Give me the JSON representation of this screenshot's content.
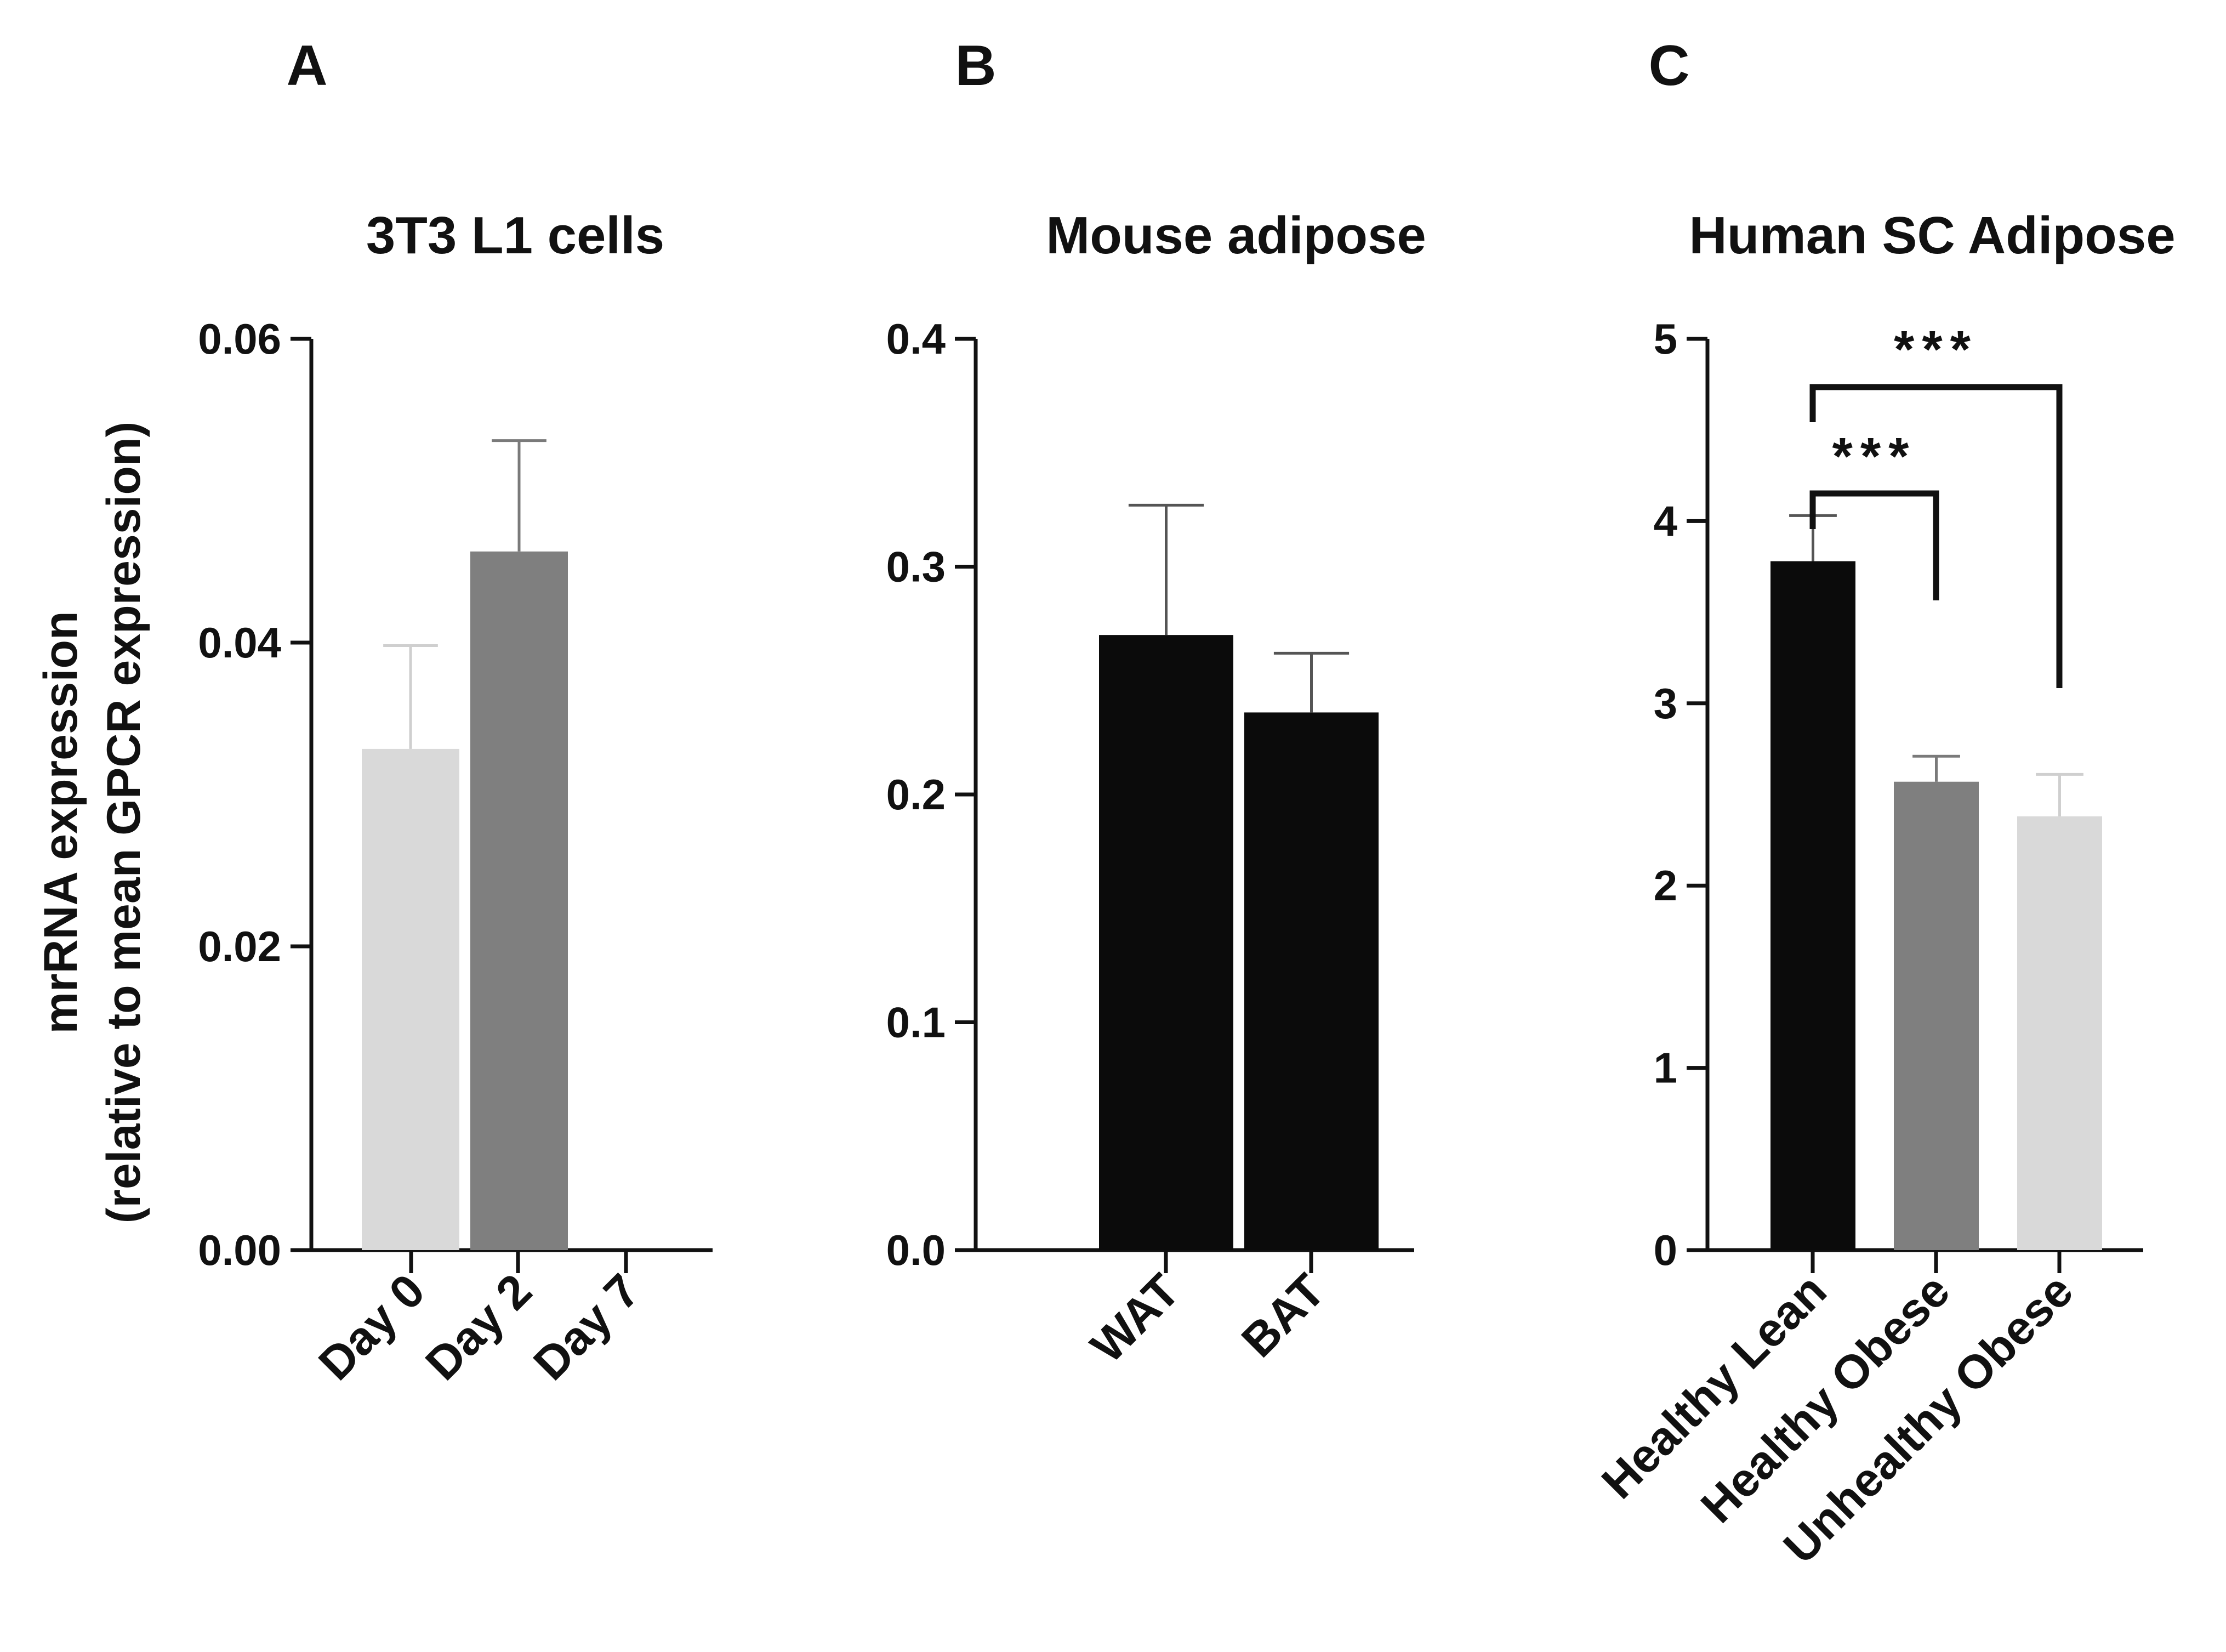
{
  "figure": {
    "ylabel_line1": "mrRNA expression",
    "ylabel_line2": "(relative to mean GPCR expression)"
  },
  "chart_data": [
    {
      "panel": "A",
      "type": "bar",
      "title": "3T3 L1 cells",
      "categories": [
        "Day 0",
        "Day 2",
        "Day 7"
      ],
      "values": [
        0.033,
        0.046,
        0.0
      ],
      "errors": [
        0.0068,
        0.0073,
        0.0
      ],
      "colors": [
        "#d9d9d9",
        "#7f7f7f",
        "#000000"
      ],
      "ylim": [
        0,
        0.06
      ],
      "yticks": [
        "0.00",
        "0.02",
        "0.04",
        "0.06"
      ]
    },
    {
      "panel": "B",
      "type": "bar",
      "title": "Mouse adipose",
      "categories": [
        "WAT",
        "BAT"
      ],
      "values": [
        0.27,
        0.236
      ],
      "errors": [
        0.057,
        0.026
      ],
      "colors": [
        "#0b0b0b",
        "#0b0b0b"
      ],
      "ylim": [
        0,
        0.4
      ],
      "yticks": [
        "0.0",
        "0.1",
        "0.2",
        "0.3",
        "0.4"
      ]
    },
    {
      "panel": "C",
      "type": "bar",
      "title": "Human SC Adipose",
      "categories": [
        "Healthy Lean",
        "Healthy Obese",
        "Unhealthy Obese"
      ],
      "values": [
        3.78,
        2.57,
        2.38
      ],
      "errors": [
        0.25,
        0.14,
        0.23
      ],
      "colors": [
        "#0b0b0b",
        "#7f7f7f",
        "#d9d9d9"
      ],
      "ylim": [
        0,
        5
      ],
      "yticks": [
        "0",
        "1",
        "2",
        "3",
        "4",
        "5"
      ],
      "significance": [
        {
          "from": "Healthy Lean",
          "to": "Healthy Obese",
          "label": "***"
        },
        {
          "from": "Healthy Lean",
          "to": "Unhealthy Obese",
          "label": "***"
        }
      ]
    }
  ]
}
